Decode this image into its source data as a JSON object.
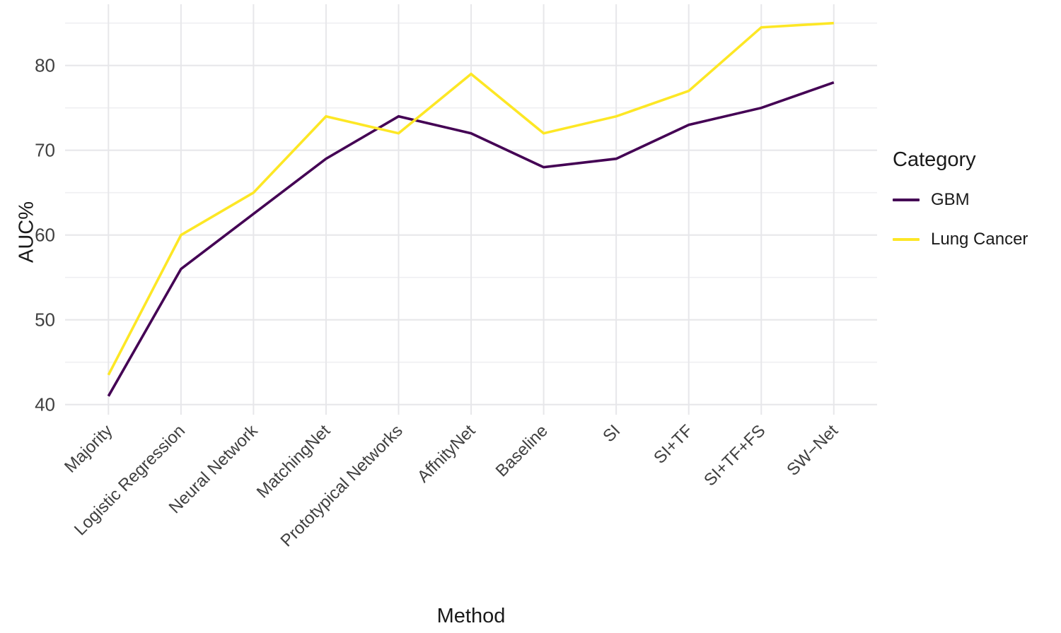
{
  "chart_data": {
    "type": "line",
    "title": "",
    "xlabel": "Method",
    "ylabel": "AUC%",
    "legend_title": "Category",
    "legend_position": "right",
    "grid": true,
    "categories": [
      "Majority",
      "Logistic Regression",
      "Neural Network",
      "MatchingNet",
      "Prototypical Networks",
      "AffnityNet",
      "Baseline",
      "SI",
      "SI+TF",
      "SI+TF+FS",
      "SW−Net"
    ],
    "series": [
      {
        "name": "GBM",
        "color": "#440154",
        "values": [
          41,
          56,
          62.5,
          69,
          74,
          72,
          68,
          69,
          73,
          75,
          78
        ]
      },
      {
        "name": "Lung Cancer",
        "color": "#FDE725",
        "values": [
          43.5,
          60,
          65,
          74,
          72,
          79,
          72,
          74,
          77,
          84.5,
          85
        ]
      }
    ],
    "ylim": [
      40,
      85
    ],
    "yticks_major": [
      40,
      50,
      60,
      70,
      80
    ],
    "yticks_minor": [
      45,
      55,
      65,
      75,
      85
    ]
  },
  "colors": {
    "grid_major": "#e7e7ea",
    "grid_minor": "#efeff2",
    "tick_text": "#404040",
    "title_text": "#1a1a1a",
    "background": "#ffffff"
  }
}
